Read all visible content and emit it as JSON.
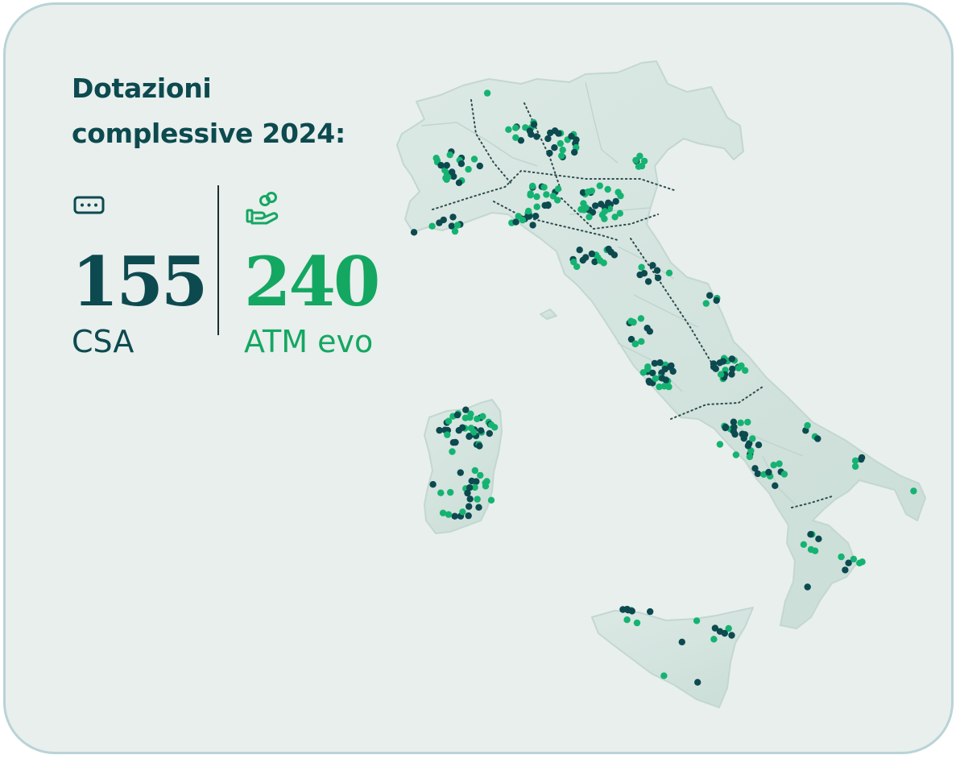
{
  "title": "Dotazioni complessive 2024:",
  "colors": {
    "card_background": "#e8efed",
    "card_border": "#b9d3d7",
    "dark_teal": "#0d4a50",
    "green": "#14a762",
    "dot_dark": "#0c4a4f",
    "dot_green": "#15b372",
    "land": "#d8e6e2"
  },
  "stats": {
    "csa": {
      "icon": "atm-card-slot-icon",
      "value": "155",
      "label": "CSA"
    },
    "atm": {
      "icon": "hand-coins-icon",
      "value": "240",
      "label": "ATM evo"
    }
  },
  "map": {
    "subject": "Italy",
    "legend": "none",
    "marker_types": [
      "CSA (dark teal dots)",
      "ATM evo (green dots)"
    ]
  }
}
